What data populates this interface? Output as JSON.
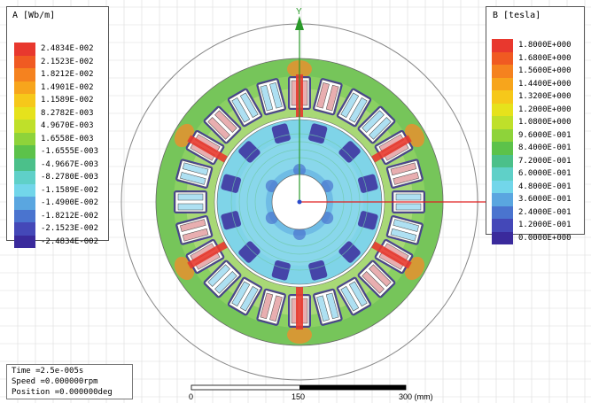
{
  "legend_a": {
    "title": "A [Wb/m]",
    "entries": [
      {
        "value": "2.4834E-002",
        "color": "#e8382e"
      },
      {
        "value": "2.1523E-002",
        "color": "#f05a22"
      },
      {
        "value": "1.8212E-002",
        "color": "#f5821f"
      },
      {
        "value": "1.4901E-002",
        "color": "#f7a51c"
      },
      {
        "value": "1.1589E-002",
        "color": "#f6c81a"
      },
      {
        "value": "8.2782E-003",
        "color": "#e6e21c"
      },
      {
        "value": "4.9670E-003",
        "color": "#bfe02a"
      },
      {
        "value": "1.6558E-003",
        "color": "#8ed33a"
      },
      {
        "value": "-1.6555E-003",
        "color": "#5cc24a"
      },
      {
        "value": "-4.9667E-003",
        "color": "#4bc08a"
      },
      {
        "value": "-8.2780E-003",
        "color": "#5fd0c8"
      },
      {
        "value": "-1.1589E-002",
        "color": "#72d6ea"
      },
      {
        "value": "-1.4900E-002",
        "color": "#5aa6e0"
      },
      {
        "value": "-1.8212E-002",
        "color": "#4a74cf"
      },
      {
        "value": "-2.1523E-002",
        "color": "#4448b8"
      },
      {
        "value": "-2.4834E-002",
        "color": "#3a2a9c"
      }
    ]
  },
  "legend_b": {
    "title": "B [tesla]",
    "entries": [
      {
        "value": "1.8000E+000",
        "color": "#e8382e"
      },
      {
        "value": "1.6800E+000",
        "color": "#f05a22"
      },
      {
        "value": "1.5600E+000",
        "color": "#f5821f"
      },
      {
        "value": "1.4400E+000",
        "color": "#f7a51c"
      },
      {
        "value": "1.3200E+000",
        "color": "#f6c81a"
      },
      {
        "value": "1.2000E+000",
        "color": "#e6e21c"
      },
      {
        "value": "1.0800E+000",
        "color": "#bfe02a"
      },
      {
        "value": "9.6000E-001",
        "color": "#8ed33a"
      },
      {
        "value": "8.4000E-001",
        "color": "#5cc24a"
      },
      {
        "value": "7.2000E-001",
        "color": "#4bc08a"
      },
      {
        "value": "6.0000E-001",
        "color": "#5fd0c8"
      },
      {
        "value": "4.8000E-001",
        "color": "#72d6ea"
      },
      {
        "value": "3.6000E-001",
        "color": "#5aa6e0"
      },
      {
        "value": "2.4000E-001",
        "color": "#4a74cf"
      },
      {
        "value": "1.2000E-001",
        "color": "#4448b8"
      },
      {
        "value": "0.0000E+000",
        "color": "#3a2a9c"
      }
    ]
  },
  "status": {
    "time": "Time    =2.5e-005s",
    "speed": "Speed    =0.000000rpm",
    "position": "Position =0.000000deg"
  },
  "scale_bar": {
    "labels": [
      "0",
      "150",
      "300 (mm)"
    ]
  },
  "axes": {
    "y_label": "Y",
    "x_label": "X"
  },
  "colors": {
    "grid": "#dcdcdc",
    "axis_y": "#2a9a2a",
    "axis_x": "#e02020",
    "stator_green": "#76c55a",
    "rotor_cyan": "#7fd4e8",
    "pole_blue": "#3b2b9c",
    "coil_red": "#e8aeb0",
    "coil_blue": "#aee0f2"
  }
}
